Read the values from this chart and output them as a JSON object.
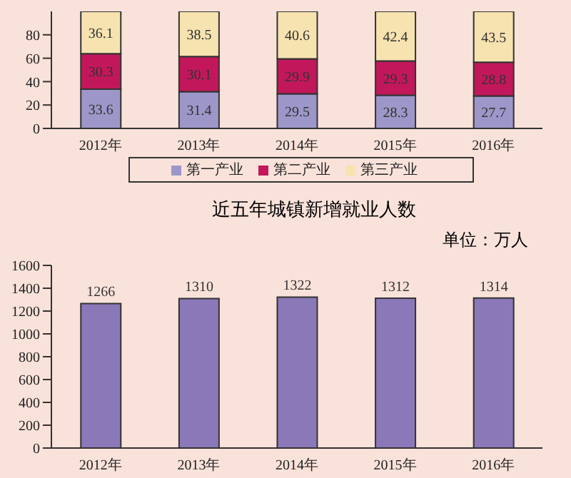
{
  "chart_data": [
    {
      "type": "bar",
      "stacked": true,
      "categories": [
        "2012年",
        "2013年",
        "2014年",
        "2015年",
        "2016年"
      ],
      "series": [
        {
          "name": "第一产业",
          "color": "#9d97c9",
          "values": [
            33.6,
            31.4,
            29.5,
            28.3,
            27.7
          ]
        },
        {
          "name": "第二产业",
          "color": "#c2185b",
          "values": [
            30.3,
            30.1,
            29.9,
            29.3,
            28.8
          ]
        },
        {
          "name": "第三产业",
          "color": "#f7e3b0",
          "values": [
            36.1,
            38.5,
            40.6,
            42.4,
            43.5
          ]
        }
      ],
      "ylim": [
        0,
        100
      ],
      "yticks": [
        0,
        20,
        40,
        60,
        80
      ],
      "data_labels": true,
      "grid": false,
      "legend": "bottom"
    },
    {
      "type": "bar",
      "title": "近五年城镇新增就业人数",
      "subtitle": "单位：万人",
      "categories": [
        "2012年",
        "2013年",
        "2014年",
        "2015年",
        "2016年"
      ],
      "values": [
        1266,
        1310,
        1322,
        1312,
        1314
      ],
      "color": "#8b78b8",
      "ylim": [
        0,
        1600
      ],
      "yticks": [
        0,
        200,
        400,
        600,
        800,
        1000,
        1200,
        1400,
        1600
      ],
      "data_labels": true,
      "grid": false
    }
  ]
}
